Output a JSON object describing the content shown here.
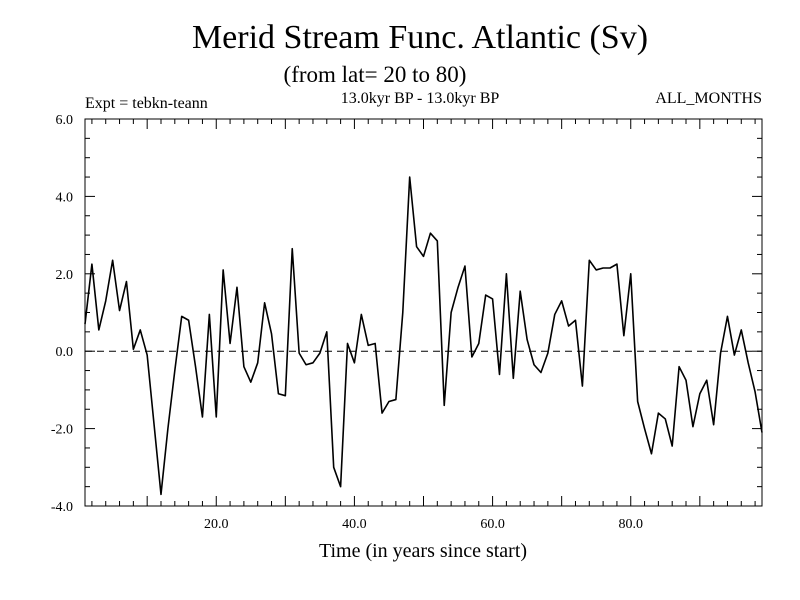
{
  "chart_data": {
    "type": "line",
    "title": "Merid Stream Func. Atlantic (Sv)",
    "subtitle": "(from lat= 20 to 80)",
    "left_label": "Expt = tebkn-teann",
    "center_label": "13.0kyr BP - 13.0kyr BP",
    "right_label": "ALL_MONTHS",
    "xlabel": "Time (in years since start)",
    "ylabel": "",
    "xlim": [
      1,
      99
    ],
    "ylim": [
      -4,
      6
    ],
    "x_ticks": [
      20,
      40,
      60,
      80
    ],
    "x_tick_labels": [
      "20.0",
      "40.0",
      "60.0",
      "80.0"
    ],
    "y_ticks": [
      -4,
      -2,
      0,
      2,
      4,
      6
    ],
    "y_tick_labels": [
      "-4.0",
      "-2.0",
      "0.0",
      "2.0",
      "4.0",
      "6.0"
    ],
    "reference_line": 0,
    "series": [
      {
        "name": "Atlantic",
        "x": [
          1,
          2,
          3,
          4,
          5,
          6,
          7,
          8,
          9,
          10,
          11,
          12,
          13,
          14,
          15,
          16,
          17,
          18,
          19,
          20,
          21,
          22,
          23,
          24,
          25,
          26,
          27,
          28,
          29,
          30,
          31,
          32,
          33,
          34,
          35,
          36,
          37,
          38,
          39,
          40,
          41,
          42,
          43,
          44,
          45,
          46,
          47,
          48,
          49,
          50,
          51,
          52,
          53,
          54,
          55,
          56,
          57,
          58,
          59,
          60,
          61,
          62,
          63,
          64,
          65,
          66,
          67,
          68,
          69,
          70,
          71,
          72,
          73,
          74,
          75,
          76,
          77,
          78,
          79,
          80,
          81,
          82,
          83,
          84,
          85,
          86,
          87,
          88,
          89,
          90,
          91,
          92,
          93,
          94,
          95,
          96,
          97,
          98,
          99
        ],
        "values": [
          0.7,
          2.25,
          0.55,
          1.3,
          2.35,
          1.05,
          1.8,
          0.05,
          0.55,
          -0.1,
          -1.9,
          -3.7,
          -2.0,
          -0.5,
          0.9,
          0.8,
          -0.4,
          -1.7,
          0.95,
          -1.7,
          2.1,
          0.2,
          1.65,
          -0.4,
          -0.8,
          -0.3,
          1.25,
          0.45,
          -1.1,
          -1.15,
          2.65,
          -0.05,
          -0.35,
          -0.3,
          -0.05,
          0.5,
          -3.0,
          -3.5,
          0.2,
          -0.3,
          0.95,
          0.15,
          0.2,
          -1.6,
          -1.3,
          -1.25,
          1.0,
          4.5,
          2.7,
          2.45,
          3.05,
          2.85,
          -1.4,
          1.0,
          1.65,
          2.2,
          -0.15,
          0.2,
          1.45,
          1.35,
          -0.6,
          2.0,
          -0.7,
          1.55,
          0.3,
          -0.35,
          -0.55,
          -0.05,
          0.95,
          1.3,
          0.65,
          0.8,
          -0.9,
          2.35,
          2.1,
          2.15,
          2.15,
          2.25,
          0.4,
          2.0,
          -1.3,
          -2.0,
          -2.65,
          -1.6,
          -1.75,
          -2.45,
          -0.4,
          -0.75,
          -1.95,
          -1.1,
          -0.75,
          -1.9,
          -0.05,
          0.9,
          -0.1,
          0.55,
          -0.3,
          -1.05,
          -2.1
        ]
      }
    ]
  }
}
